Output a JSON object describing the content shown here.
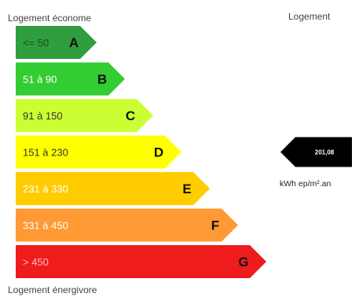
{
  "header": {
    "top_label": "Logement économe",
    "bottom_label": "Logement énergivore",
    "right_label": "Logement"
  },
  "indicator": {
    "value": "201,08",
    "unit": "kWh ep/m².an",
    "color": "#000000"
  },
  "chart_data": {
    "type": "bar",
    "title": "",
    "classes": [
      {
        "letter": "A",
        "range": "<= 50",
        "color": "#2f9e3f",
        "text_color": "#1d4d1d"
      },
      {
        "letter": "B",
        "range": "51 à 90",
        "color": "#33cc33",
        "text_color": "#ffffff"
      },
      {
        "letter": "C",
        "range": "91 à 150",
        "color": "#ccff33",
        "text_color": "#333333"
      },
      {
        "letter": "D",
        "range": "151 à 230",
        "color": "#ffff00",
        "text_color": "#333333"
      },
      {
        "letter": "E",
        "range": "231 à 330",
        "color": "#ffcc00",
        "text_color": "#ffffff"
      },
      {
        "letter": "F",
        "range": "331 à 450",
        "color": "#ff9933",
        "text_color": "#ffffff"
      },
      {
        "letter": "G",
        "range": "> 450",
        "color": "#ee1c1c",
        "text_color": "#ffbcbc"
      }
    ],
    "current_class": "D",
    "current_value": 201.08
  }
}
